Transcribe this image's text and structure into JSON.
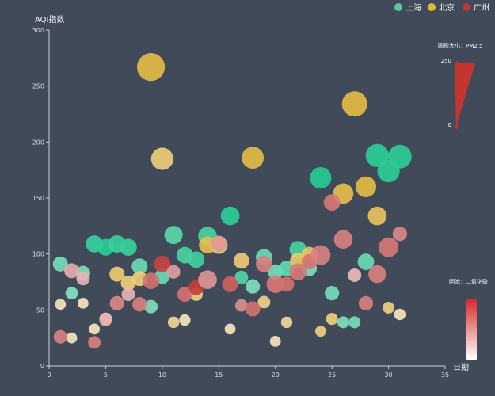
{
  "chart_data": {
    "type": "scatter",
    "xlabel": "日期",
    "ylabel": "AQI指数",
    "xlim": [
      0,
      35
    ],
    "ylim": [
      0,
      300
    ],
    "x_ticks": [
      0,
      5,
      10,
      15,
      20,
      25,
      30,
      35
    ],
    "y_ticks": [
      0,
      50,
      100,
      150,
      200,
      250,
      300
    ],
    "legend": {
      "position": "top-right",
      "items": [
        {
          "name": "上海",
          "color": "#5ac794"
        },
        {
          "name": "北京",
          "color": "#e5b736"
        },
        {
          "name": "广州",
          "color": "#c23531"
        }
      ]
    },
    "visual_map_size": {
      "title": "圆形大小：PM2.5",
      "max_label": "250",
      "min_label": "0",
      "range": [
        0,
        250
      ]
    },
    "visual_map_color": {
      "title": "明暗：二氧化硫",
      "colors": [
        "#ffffff",
        "#d82a2a"
      ]
    },
    "series": [
      {
        "name": "上海",
        "color": "#14c98a",
        "points": [
          [
            1,
            91,
            30,
            0.45
          ],
          [
            2,
            65,
            15,
            0.35
          ],
          [
            3,
            83,
            25,
            0.4
          ],
          [
            4,
            109,
            45,
            0.8
          ],
          [
            5,
            106,
            42,
            0.85
          ],
          [
            6,
            109,
            48,
            0.8
          ],
          [
            7,
            106,
            45,
            0.8
          ],
          [
            8,
            89,
            35,
            0.5
          ],
          [
            9,
            53,
            20,
            0.4
          ],
          [
            10,
            80,
            30,
            0.5
          ],
          [
            11,
            117,
            55,
            0.6
          ],
          [
            12,
            99,
            40,
            0.7
          ],
          [
            13,
            95,
            40,
            0.75
          ],
          [
            14,
            116,
            60,
            0.7
          ],
          [
            15,
            108,
            50,
            0.35
          ],
          [
            16,
            134,
            60,
            0.85
          ],
          [
            17,
            79,
            20,
            0.65
          ],
          [
            18,
            71,
            25,
            0.4
          ],
          [
            19,
            97,
            40,
            0.5
          ],
          [
            20,
            84,
            30,
            0.45
          ],
          [
            21,
            87,
            35,
            0.55
          ],
          [
            22,
            104,
            45,
            0.7
          ],
          [
            23,
            87,
            30,
            0.4
          ],
          [
            24,
            168,
            90,
            0.9
          ],
          [
            25,
            65,
            25,
            0.45
          ],
          [
            26,
            39,
            12,
            0.4
          ],
          [
            27,
            39,
            12,
            0.45
          ],
          [
            28,
            93,
            40,
            0.5
          ],
          [
            29,
            188,
            110,
            0.85
          ],
          [
            30,
            174,
            100,
            0.85
          ],
          [
            31,
            187,
            115,
            0.85
          ]
        ]
      },
      {
        "name": "北京",
        "color": "#e5b736",
        "points": [
          [
            1,
            55,
            8,
            0.1
          ],
          [
            2,
            25,
            8,
            0.1
          ],
          [
            3,
            56,
            8,
            0.1
          ],
          [
            4,
            33,
            8,
            0.1
          ],
          [
            5,
            42,
            15,
            0.1
          ],
          [
            6,
            82,
            30,
            0.6
          ],
          [
            7,
            74,
            30,
            0.55
          ],
          [
            8,
            78,
            30,
            0.55
          ],
          [
            9,
            267,
            180,
            0.9
          ],
          [
            10,
            185,
            100,
            0.55
          ],
          [
            11,
            39,
            10,
            0.35
          ],
          [
            12,
            41,
            10,
            0.1
          ],
          [
            13,
            64,
            18,
            0.5
          ],
          [
            14,
            108,
            45,
            0.85
          ],
          [
            15,
            108,
            40,
            0.65
          ],
          [
            16,
            33,
            8,
            0.1
          ],
          [
            17,
            94,
            35,
            0.6
          ],
          [
            18,
            186,
            95,
            0.9
          ],
          [
            19,
            57,
            15,
            0.45
          ],
          [
            20,
            22,
            8,
            0.1
          ],
          [
            21,
            39,
            10,
            0.35
          ],
          [
            22,
            94,
            35,
            0.65
          ],
          [
            23,
            99,
            40,
            0.7
          ],
          [
            24,
            31,
            8,
            0.5
          ],
          [
            25,
            42,
            12,
            0.5
          ],
          [
            26,
            154,
            75,
            0.85
          ],
          [
            27,
            234,
            140,
            0.9
          ],
          [
            28,
            160,
            80,
            0.9
          ],
          [
            29,
            134,
            60,
            0.75
          ],
          [
            30,
            52,
            12,
            0.5
          ],
          [
            31,
            46,
            10,
            0.1
          ]
        ]
      },
      {
        "name": "广州",
        "color": "#c23531",
        "points": [
          [
            1,
            26,
            20,
            0.5
          ],
          [
            2,
            85,
            30,
            0.2
          ],
          [
            3,
            78,
            20,
            0.15
          ],
          [
            4,
            21,
            15,
            0.5
          ],
          [
            5,
            41,
            15,
            0.2
          ],
          [
            6,
            56,
            25,
            0.45
          ],
          [
            7,
            64,
            20,
            0.15
          ],
          [
            8,
            55,
            25,
            0.5
          ],
          [
            9,
            76,
            40,
            0.6
          ],
          [
            10,
            91,
            40,
            0.9
          ],
          [
            11,
            84,
            20,
            0.3
          ],
          [
            12,
            64,
            30,
            0.6
          ],
          [
            13,
            70,
            30,
            0.95
          ],
          [
            14,
            77,
            60,
            0.35
          ],
          [
            15,
            109,
            40,
            0.35
          ],
          [
            16,
            73,
            35,
            0.7
          ],
          [
            17,
            54,
            15,
            0.4
          ],
          [
            18,
            51,
            30,
            0.6
          ],
          [
            19,
            91,
            40,
            0.5
          ],
          [
            20,
            73,
            50,
            0.55
          ],
          [
            21,
            73,
            30,
            0.6
          ],
          [
            22,
            84,
            45,
            0.55
          ],
          [
            23,
            93,
            30,
            0.6
          ],
          [
            24,
            99,
            70,
            0.5
          ],
          [
            25,
            146,
            40,
            0.55
          ],
          [
            26,
            113,
            60,
            0.5
          ],
          [
            27,
            81,
            20,
            0.1
          ],
          [
            28,
            56,
            25,
            0.5
          ],
          [
            29,
            82,
            50,
            0.5
          ],
          [
            30,
            106,
            70,
            0.55
          ],
          [
            31,
            118,
            25,
            0.45
          ]
        ]
      }
    ]
  }
}
